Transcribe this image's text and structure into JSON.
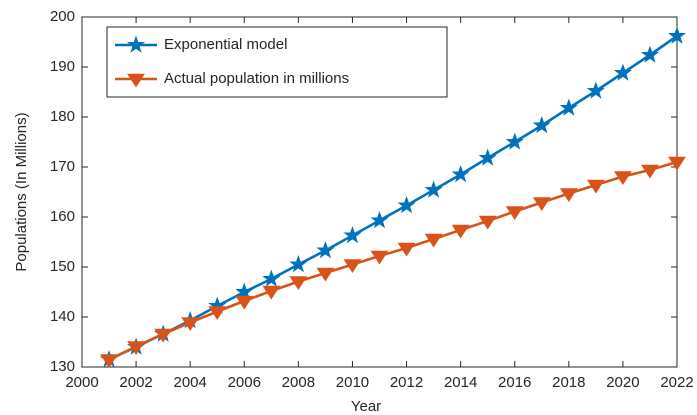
{
  "chart_data": {
    "type": "line",
    "x_label": "Year",
    "y_label": "Populations (In Millions)",
    "x": [
      2001,
      2002,
      2003,
      2004,
      2005,
      2006,
      2007,
      2008,
      2009,
      2010,
      2011,
      2012,
      2013,
      2014,
      2015,
      2016,
      2017,
      2018,
      2019,
      2020,
      2021,
      2022
    ],
    "series": [
      {
        "name": "Exponential model",
        "color": "#0072BD",
        "marker": "star",
        "values": [
          131.5,
          134,
          136.6,
          139.3,
          142.2,
          145,
          147.6,
          150.5,
          153.3,
          156.3,
          159.3,
          162.3,
          165.4,
          168.5,
          171.8,
          175,
          178.3,
          181.8,
          185.2,
          188.8,
          192.4,
          196.2
        ]
      },
      {
        "name": "Actual population in millions",
        "color": "#D95319",
        "marker": "triangle-down",
        "values": [
          131.5,
          134.1,
          136.6,
          138.9,
          141.1,
          143.2,
          145.2,
          147.1,
          148.8,
          150.5,
          152.2,
          153.8,
          155.6,
          157.4,
          159.2,
          161.1,
          162.9,
          164.7,
          166.4,
          168.1,
          169.4,
          171
        ]
      }
    ],
    "xlim": [
      2000,
      2022
    ],
    "xticks": [
      2000,
      2002,
      2004,
      2006,
      2008,
      2010,
      2012,
      2014,
      2016,
      2018,
      2020,
      2022
    ],
    "ylim": [
      130,
      200
    ],
    "yticks": [
      130,
      140,
      150,
      160,
      170,
      180,
      190,
      200
    ],
    "legend": "northwest"
  }
}
